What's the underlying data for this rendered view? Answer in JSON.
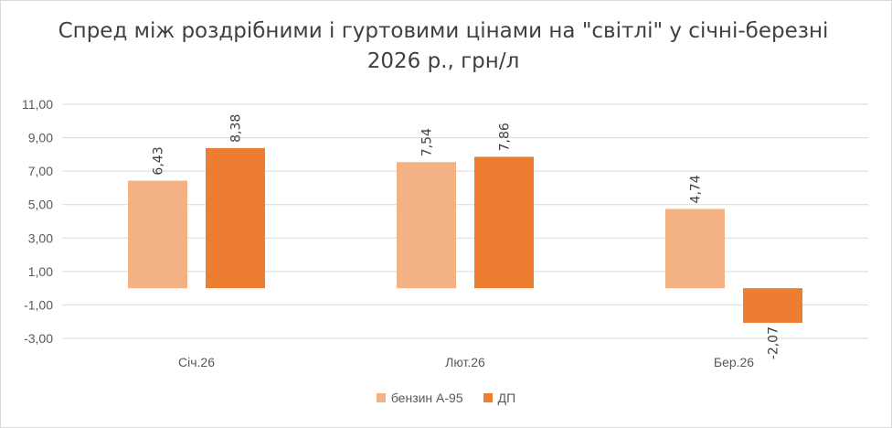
{
  "chart_data": {
    "type": "bar",
    "title": "Спред між роздрібними і гуртовими цінами на \"світлі\" у січні-березні 2026 р., грн/л",
    "categories": [
      "Січ.26",
      "Лют.26",
      "Бер.26"
    ],
    "series": [
      {
        "name": "бензин А-95",
        "values": [
          6.43,
          7.54,
          4.74
        ],
        "labels": [
          "6,43",
          "7,54",
          "4,74"
        ],
        "color": "#f4b183"
      },
      {
        "name": "ДП",
        "values": [
          8.38,
          7.86,
          -2.07
        ],
        "labels": [
          "8,38",
          "7,86",
          "-2,07"
        ],
        "color": "#ed7d31"
      }
    ],
    "ylim": [
      -3,
      11
    ],
    "yticks": [
      -3,
      -1,
      1,
      3,
      5,
      7,
      9,
      11
    ],
    "ytick_labels": [
      "-3,00",
      "-1,00",
      "1,00",
      "3,00",
      "5,00",
      "7,00",
      "9,00",
      "11,00"
    ],
    "grid": true,
    "legend_position": "bottom",
    "xlabel": "",
    "ylabel": ""
  }
}
